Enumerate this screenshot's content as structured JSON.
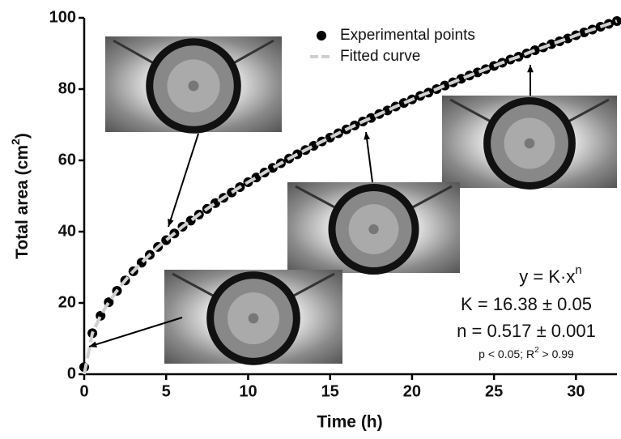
{
  "chart_data": {
    "type": "scatter",
    "x_label": "Time (h)",
    "y_label": [
      "Total area (cm",
      "2",
      ")"
    ],
    "x": [
      0,
      0.5,
      1,
      1.5,
      2,
      2.5,
      3,
      3.5,
      4,
      4.5,
      5,
      5.5,
      6,
      6.5,
      7,
      7.5,
      8,
      8.5,
      9,
      9.5,
      10,
      10.5,
      11,
      11.5,
      12,
      12.5,
      13,
      13.5,
      14,
      14.5,
      15,
      15.5,
      16,
      16.5,
      17,
      17.5,
      18,
      18.5,
      19,
      19.5,
      20,
      20.5,
      21,
      21.5,
      22,
      22.5,
      23,
      23.5,
      24,
      24.5,
      25,
      25.5,
      26,
      26.5,
      27,
      27.5,
      28,
      28.5,
      29,
      29.5,
      30,
      30.5,
      31,
      31.5,
      32,
      32.5
    ],
    "series": [
      {
        "name": "Experimental points",
        "color": "#000000",
        "style": "markers",
        "values": [
          2,
          11.5,
          16.4,
          20.2,
          23.4,
          26.3,
          28.9,
          31.3,
          33.5,
          35.7,
          37.6,
          39.5,
          41.4,
          43.1,
          44.8,
          46.4,
          48.0,
          49.5,
          51.0,
          52.5,
          53.9,
          55.2,
          56.6,
          57.9,
          59.2,
          60.5,
          61.7,
          62.9,
          64.1,
          65.3,
          66.4,
          67.6,
          68.7,
          69.8,
          70.9,
          71.9,
          73.0,
          74.0,
          75.1,
          76.1,
          77.1,
          78.1,
          79.0,
          80.0,
          81.0,
          81.9,
          82.9,
          83.8,
          84.7,
          85.6,
          86.5,
          87.4,
          88.3,
          89.1,
          90.0,
          90.9,
          91.7,
          92.6,
          93.4,
          94.2,
          95.1,
          95.9,
          96.7,
          97.5,
          98.3,
          99.1
        ]
      },
      {
        "name": "Fitted curve",
        "color": "#d0d0d0",
        "style": "dashed",
        "values": [
          0,
          11.5,
          16.4,
          20.2,
          23.4,
          26.3,
          28.9,
          31.3,
          33.5,
          35.7,
          37.6,
          39.5,
          41.4,
          43.1,
          44.8,
          46.4,
          48.0,
          49.5,
          51.0,
          52.5,
          53.9,
          55.2,
          56.6,
          57.9,
          59.2,
          60.5,
          61.7,
          62.9,
          64.1,
          65.3,
          66.4,
          67.6,
          68.7,
          69.8,
          70.9,
          71.9,
          73.0,
          74.0,
          75.1,
          76.1,
          77.1,
          78.1,
          79.0,
          80.0,
          81.0,
          81.9,
          82.9,
          83.8,
          84.7,
          85.6,
          86.5,
          87.4,
          88.3,
          89.1,
          90.0,
          90.9,
          91.7,
          92.6,
          93.4,
          94.2,
          95.1,
          95.9,
          96.7,
          97.5,
          98.3,
          99.1
        ]
      }
    ],
    "xlim": [
      0,
      32.5
    ],
    "xticks": [
      0,
      5,
      10,
      15,
      20,
      25,
      30
    ],
    "ylim": [
      0,
      100
    ],
    "yticks": [
      0,
      20,
      40,
      60,
      80,
      100
    ],
    "annotations": {
      "equation": [
        "y = K·x",
        "n"
      ],
      "k": "K = 16.38 ± 0.05",
      "n": "n = 0.517 ± 0.001",
      "stats": [
        "p < 0.05; R",
        "2",
        " > 0.99"
      ]
    }
  }
}
